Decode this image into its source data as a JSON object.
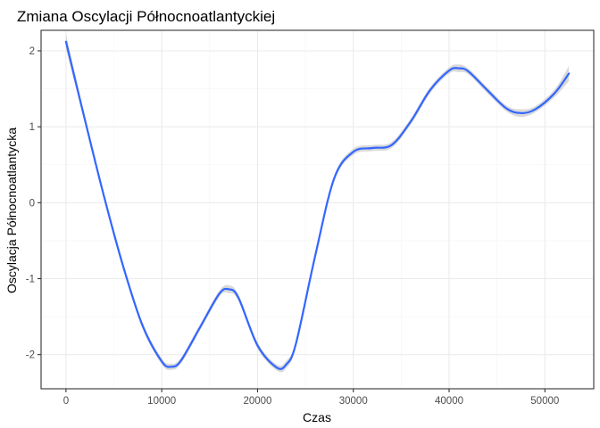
{
  "chart_data": {
    "type": "line",
    "title": "Zmiana Oscylacji Północnoatlantyckiej",
    "xlabel": "Czas",
    "ylabel": "Oscylacja Północnoatlantycka",
    "xlim": [
      -2600,
      55100
    ],
    "ylim": [
      -2.45,
      2.27
    ],
    "x_ticks": [
      0,
      10000,
      20000,
      30000,
      40000,
      50000
    ],
    "x_tick_labels": [
      "0",
      "10000",
      "20000",
      "30000",
      "40000",
      "50000"
    ],
    "y_ticks": [
      -2,
      -1,
      0,
      1,
      2
    ],
    "y_tick_labels": [
      "-2",
      "-1",
      "0",
      "1",
      "2"
    ],
    "grid": true,
    "legend": "none",
    "colors": {
      "line": "#3366FF",
      "ribbon": "#BFBFBF",
      "grid_major": "#EBEBEB",
      "grid_minor": "#F5F5F5",
      "border": "#333333"
    },
    "series": [
      {
        "x": [
          0,
          2000,
          4000,
          6000,
          8000,
          10000,
          11000,
          12000,
          14000,
          16000,
          17000,
          18000,
          20000,
          22000,
          23000,
          24000,
          26000,
          28000,
          30000,
          32000,
          34000,
          36000,
          38000,
          40000,
          41000,
          42000,
          44000,
          46000,
          47500,
          49000,
          51000,
          52500
        ],
        "y": [
          2.12,
          1.08,
          0.07,
          -0.85,
          -1.62,
          -2.09,
          -2.16,
          -2.08,
          -1.64,
          -1.2,
          -1.14,
          -1.25,
          -1.88,
          -2.17,
          -2.13,
          -1.86,
          -0.71,
          0.32,
          0.67,
          0.72,
          0.76,
          1.07,
          1.48,
          1.74,
          1.77,
          1.73,
          1.48,
          1.24,
          1.18,
          1.23,
          1.44,
          1.7
        ],
        "ci_halfwidth": [
          0.1,
          0.05,
          0.04,
          0.04,
          0.04,
          0.04,
          0.04,
          0.04,
          0.04,
          0.04,
          0.05,
          0.04,
          0.04,
          0.04,
          0.05,
          0.04,
          0.04,
          0.04,
          0.04,
          0.04,
          0.04,
          0.04,
          0.04,
          0.04,
          0.05,
          0.04,
          0.04,
          0.04,
          0.05,
          0.04,
          0.05,
          0.1
        ]
      }
    ]
  }
}
